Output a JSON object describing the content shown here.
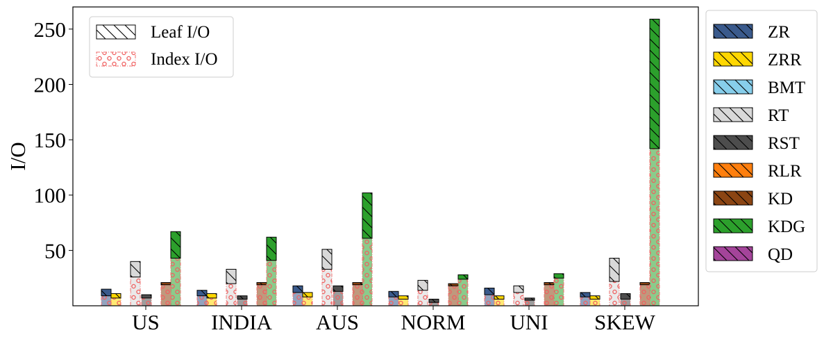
{
  "chart_data": {
    "type": "bar",
    "stacked": true,
    "ylabel": "I/O",
    "xlabel": "",
    "ylim": [
      0,
      270
    ],
    "yticks": [
      50,
      100,
      150,
      200,
      250
    ],
    "categories": [
      "US",
      "INDIA",
      "AUS",
      "NORM",
      "UNI",
      "SKEW"
    ],
    "segments": [
      {
        "name": "Leaf I/O",
        "hatch": "diagonal",
        "edge": "#000000"
      },
      {
        "name": "Index I/O",
        "hatch": "circles",
        "edge": "#f07070"
      }
    ],
    "series": [
      {
        "name": "ZR",
        "color": "#3a5a8c",
        "index_io": [
          9,
          9,
          12,
          8,
          10,
          8
        ],
        "leaf_io": [
          6,
          5,
          6,
          5,
          6,
          4
        ]
      },
      {
        "name": "ZRR",
        "color": "#ffd700",
        "index_io": [
          7,
          7,
          8,
          6,
          6,
          6
        ],
        "leaf_io": [
          4,
          4,
          4,
          3,
          3,
          3
        ]
      },
      {
        "name": "BMT",
        "color": "#87ceeb",
        "index_io": [
          0,
          0,
          0,
          0,
          0,
          0
        ],
        "leaf_io": [
          0,
          0,
          0,
          0,
          0,
          0
        ]
      },
      {
        "name": "RT",
        "color": "#d9d9d9",
        "index_io": [
          26,
          20,
          33,
          14,
          12,
          22
        ],
        "leaf_io": [
          14,
          13,
          18,
          9,
          6,
          21
        ]
      },
      {
        "name": "RST",
        "color": "#4d4d4d",
        "index_io": [
          7,
          6,
          13,
          3,
          5,
          6
        ],
        "leaf_io": [
          3,
          3,
          5,
          3,
          2,
          5
        ]
      },
      {
        "name": "RLR",
        "color": "#ff7f0e",
        "index_io": [
          0,
          0,
          0,
          0,
          0,
          0
        ],
        "leaf_io": [
          0,
          0,
          0,
          0,
          0,
          0
        ]
      },
      {
        "name": "KD",
        "color": "#8b4513",
        "index_io": [
          19,
          19,
          19,
          18,
          19,
          19
        ],
        "leaf_io": [
          2,
          2,
          2,
          2,
          2,
          2
        ]
      },
      {
        "name": "KDG",
        "color": "#2ca02c",
        "index_io": [
          43,
          41,
          61,
          24,
          25,
          142
        ],
        "leaf_io": [
          24,
          21,
          41,
          4,
          4,
          117
        ]
      },
      {
        "name": "QD",
        "color": "#a4449a",
        "index_io": [
          0,
          0,
          0,
          0,
          0,
          0
        ],
        "leaf_io": [
          0,
          0,
          0,
          0,
          0,
          0
        ]
      }
    ],
    "hatch_legend_placement": "top-left inside",
    "method_legend_placement": "right outside",
    "grid": false
  }
}
